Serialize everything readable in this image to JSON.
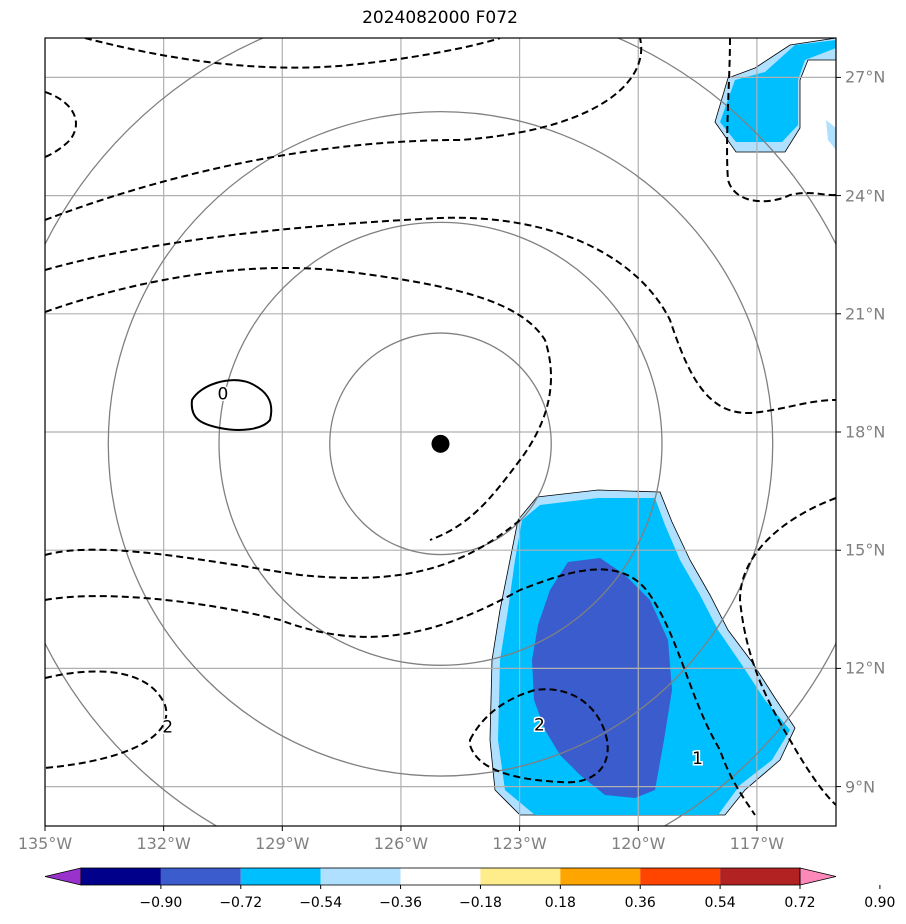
{
  "title": "2024082000 F072",
  "map": {
    "lon_range": [
      -135,
      -115
    ],
    "lat_range": [
      8,
      28
    ],
    "lon_ticks": [
      {
        "value": -135,
        "label": "135°W"
      },
      {
        "value": -132,
        "label": "132°W"
      },
      {
        "value": -129,
        "label": "129°W"
      },
      {
        "value": -126,
        "label": "126°W"
      },
      {
        "value": -123,
        "label": "123°W"
      },
      {
        "value": -120,
        "label": "120°W"
      },
      {
        "value": -117,
        "label": "117°W"
      }
    ],
    "lat_ticks": [
      {
        "value": 27,
        "label": "27°N"
      },
      {
        "value": 24,
        "label": "24°N"
      },
      {
        "value": 21,
        "label": "21°N"
      },
      {
        "value": 18,
        "label": "18°N"
      },
      {
        "value": 15,
        "label": "15°N"
      },
      {
        "value": 12,
        "label": "12°N"
      }
    ],
    "lat_ticks_small": [
      {
        "value": 9,
        "label": "9°N"
      }
    ],
    "storm_center": {
      "lon": -125.0,
      "lat": 17.7
    },
    "range_rings_deg": [
      2.8,
      5.6,
      8.4,
      11.2
    ],
    "contour_labels": [
      {
        "text": "0",
        "lon": -130.5,
        "lat": 18.95
      },
      {
        "text": "2",
        "lon": -122.5,
        "lat": 10.55
      },
      {
        "text": "2",
        "lon": -131.9,
        "lat": 10.5
      },
      {
        "text": "1",
        "lon": -118.5,
        "lat": 9.7
      }
    ]
  },
  "colorbar": {
    "colors": [
      "#9932cc",
      "#00008b",
      "#3a5ccc",
      "#00bfff",
      "#b0e0ff",
      "#ffffff",
      "#ffec8b",
      "#ffa500",
      "#ff4500",
      "#b22222",
      "#ff88bb"
    ],
    "tick_labels": [
      "−0.90",
      "−0.72",
      "−0.54",
      "−0.36",
      "−0.18",
      "0.18",
      "0.36",
      "0.54",
      "0.72",
      "0.90"
    ]
  }
}
